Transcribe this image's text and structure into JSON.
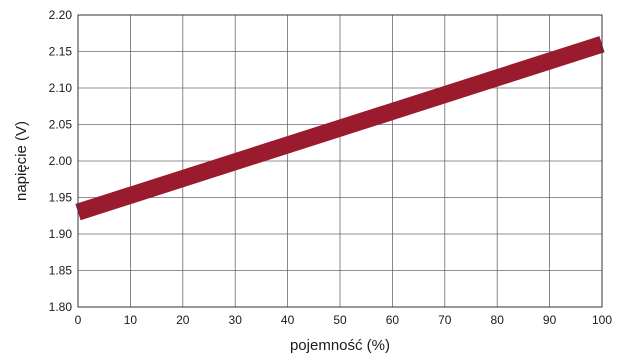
{
  "chart_data": {
    "type": "line",
    "title": "",
    "xlabel": "pojemność (%)",
    "ylabel": "napięcie (V)",
    "xlim": [
      0,
      100
    ],
    "ylim": [
      1.8,
      2.2
    ],
    "xticks": [
      "0",
      "10",
      "20",
      "30",
      "40",
      "50",
      "60",
      "70",
      "80",
      "90",
      "100"
    ],
    "yticks": [
      "1.80",
      "1.85",
      "1.90",
      "1.95",
      "2.00",
      "2.05",
      "2.10",
      "2.15",
      "2.20"
    ],
    "grid": true,
    "legend": "none",
    "series": [
      {
        "color": "#9b1b2e",
        "x": [
          0,
          100
        ],
        "y": [
          1.93,
          2.16
        ]
      }
    ]
  }
}
